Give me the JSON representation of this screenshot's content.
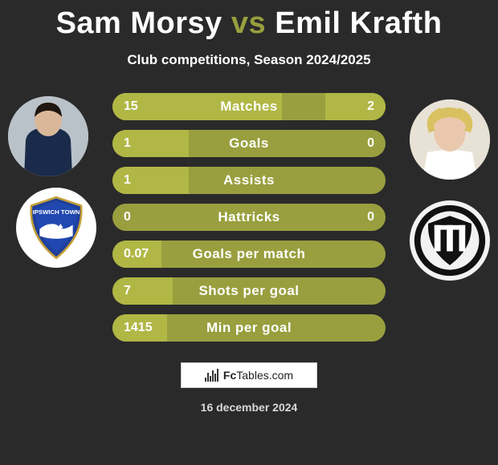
{
  "colors": {
    "background": "#2a2a2a",
    "bar_base": "#999f3e",
    "bar_fill": "#b0b745",
    "title_accent": "#999f3e",
    "title_main": "#ffffff",
    "text_white": "#ffffff",
    "date_text": "#d8d8d8"
  },
  "title": {
    "left": "Sam Morsy",
    "vs": "vs",
    "right": "Emil Krafth",
    "fontsize": 38
  },
  "subtitle": "Club competitions, Season 2024/2025",
  "rows": [
    {
      "label": "Matches",
      "left": "15",
      "right": "2",
      "fillL": 62,
      "fillR": 22
    },
    {
      "label": "Goals",
      "left": "1",
      "right": "0",
      "fillL": 28,
      "fillR": 0
    },
    {
      "label": "Assists",
      "left": "1",
      "right": "",
      "fillL": 28,
      "fillR": 0
    },
    {
      "label": "Hattricks",
      "left": "0",
      "right": "0",
      "fillL": 0,
      "fillR": 0
    },
    {
      "label": "Goals per match",
      "left": "0.07",
      "right": "",
      "fillL": 18,
      "fillR": 0
    },
    {
      "label": "Shots per goal",
      "left": "7",
      "right": "",
      "fillL": 22,
      "fillR": 0
    },
    {
      "label": "Min per goal",
      "left": "1415",
      "right": "",
      "fillL": 20,
      "fillR": 0
    }
  ],
  "row_style": {
    "height": 34,
    "radius": 17,
    "gap": 12,
    "label_fontsize": 17,
    "value_fontsize": 16
  },
  "footer": {
    "brand_bold": "Fc",
    "brand_rest": "Tables.com"
  },
  "date": "16 december 2024",
  "avatars": {
    "left_bg": "#c8c8c8",
    "right_bg": "#c8c8c8"
  },
  "clubs": {
    "left_bg": "#ffffff",
    "right_bg": "#f2f2f2"
  }
}
